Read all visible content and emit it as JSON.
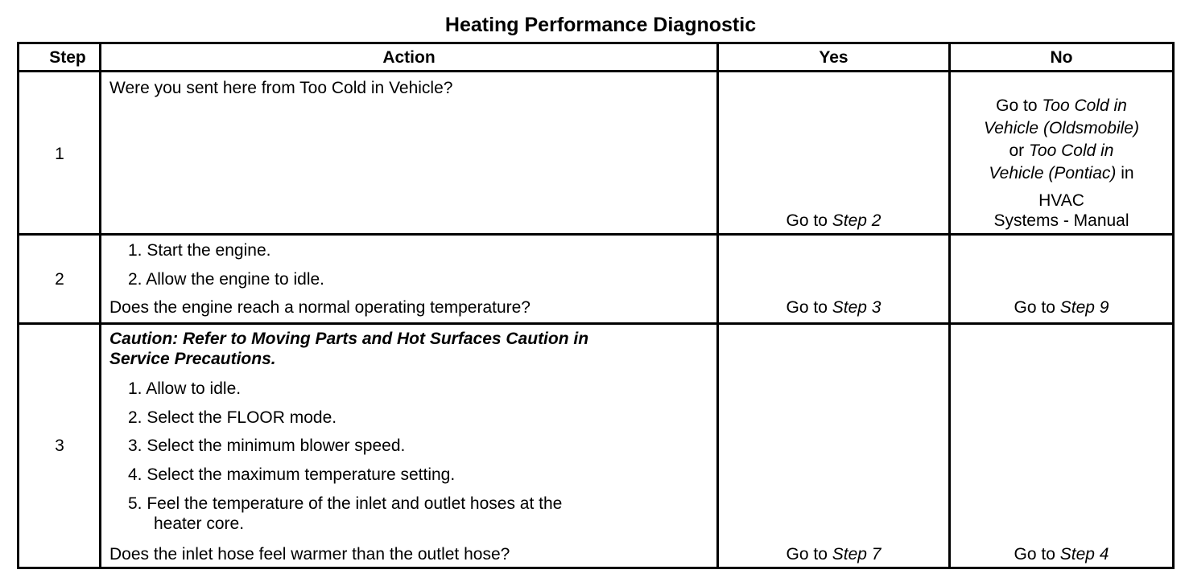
{
  "title": "Heating Performance Diagnostic",
  "headers": {
    "step": "Step",
    "action": "Action",
    "yes": "Yes",
    "no": "No"
  },
  "rows": [
    {
      "step": "1",
      "question": "Were you sent here from Too Cold in Vehicle?",
      "yes": {
        "prefix": "Go to ",
        "link": "Step 2"
      },
      "no": {
        "l1a": "Go to ",
        "l1b": "Too Cold in",
        "l2": "Vehicle (Oldsmobile)",
        "l3a": "or ",
        "l3b": "Too Cold in",
        "l4a": "Vehicle (Pontiac)",
        "l4b": " in",
        "l5": "HVAC",
        "l6": "Systems - Manual"
      }
    },
    {
      "step": "2",
      "items": [
        "1.  Start the engine.",
        "2.  Allow the engine to idle."
      ],
      "question": "Does the engine reach a normal operating temperature?",
      "yes": {
        "prefix": "Go to ",
        "link": "Step 3"
      },
      "no": {
        "prefix": "Go to ",
        "link": "Step 9"
      }
    },
    {
      "step": "3",
      "caution": [
        "Caution: Refer to Moving Parts and Hot Surfaces Caution in",
        "Service Precautions."
      ],
      "items": [
        "1.  Allow to idle.",
        "2.  Select the FLOOR mode.",
        "3.  Select the minimum blower speed.",
        "4.  Select the maximum temperature setting.",
        "5.  Feel the temperature of the inlet and outlet hoses at the",
        "heater core."
      ],
      "question": "Does the inlet hose feel warmer than the outlet hose?",
      "yes": {
        "prefix": "Go to ",
        "link": "Step 7"
      },
      "no": {
        "prefix": "Go to ",
        "link": "Step 4"
      }
    }
  ]
}
